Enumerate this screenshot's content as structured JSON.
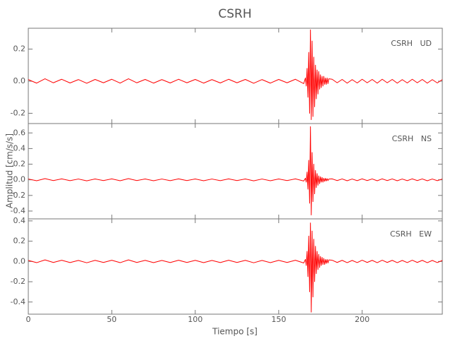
{
  "chart_data": {
    "type": "line",
    "title": "CSRH",
    "xlabel": "Tiempo [s]",
    "ylabel": "Amplitud [cm/s/s]",
    "xlim": [
      0,
      248
    ],
    "xticks": [
      0,
      50,
      100,
      150,
      200
    ],
    "x": [
      0,
      5,
      10,
      15,
      20,
      25,
      30,
      35,
      40,
      45,
      50,
      55,
      60,
      65,
      70,
      75,
      80,
      85,
      90,
      95,
      100,
      105,
      110,
      115,
      120,
      125,
      130,
      135,
      140,
      145,
      150,
      155,
      160,
      165,
      166,
      166.5,
      167,
      167.5,
      168,
      168.5,
      169,
      169.5,
      170,
      170.5,
      171,
      171.5,
      172,
      172.5,
      173,
      173.5,
      174,
      174.5,
      175,
      175.5,
      176,
      176.5,
      177,
      177.5,
      178,
      178.5,
      179,
      179.5,
      180,
      182,
      185,
      188,
      191,
      194,
      197,
      200,
      203,
      206,
      209,
      212,
      215,
      218,
      221,
      224,
      227,
      230,
      233,
      236,
      239,
      242,
      245,
      248
    ],
    "panels": [
      {
        "name": "CSRH   UD",
        "color": "#ff0000",
        "ylim": [
          -0.264,
          0.33
        ],
        "yticks": [
          -0.2,
          {
            "value": 0,
            "label": "0.0"
          },
          0.2
        ],
        "values": [
          0.01,
          -0.012,
          0.015,
          -0.01,
          0.012,
          -0.011,
          0.01,
          -0.013,
          0.011,
          -0.01,
          0.012,
          -0.012,
          0.015,
          -0.01,
          0.011,
          -0.012,
          0.01,
          -0.011,
          0.012,
          -0.01,
          0.011,
          -0.012,
          0.01,
          -0.011,
          0.012,
          -0.01,
          0.011,
          -0.013,
          0.01,
          -0.012,
          0.011,
          -0.01,
          0.012,
          -0.015,
          0.02,
          -0.03,
          0.08,
          -0.1,
          0.18,
          -0.2,
          0.32,
          -0.24,
          0.25,
          -0.22,
          0.15,
          -0.16,
          0.1,
          -0.11,
          0.07,
          -0.08,
          0.06,
          -0.05,
          0.04,
          -0.04,
          0.03,
          -0.03,
          0.03,
          -0.02,
          0.02,
          -0.02,
          0.02,
          -0.015,
          0.015,
          0.012,
          -0.01,
          0.011,
          -0.012,
          0.01,
          -0.011,
          0.012,
          -0.01,
          0.011,
          -0.012,
          0.012,
          -0.01,
          0.011,
          -0.012,
          0.01,
          -0.011,
          0.012,
          -0.01,
          0.011,
          -0.012,
          0.01,
          -0.011,
          0.01
        ]
      },
      {
        "name": "CSRH   NS",
        "color": "#ff0000",
        "ylim": [
          -0.5,
          0.72
        ],
        "yticks": [
          -0.4,
          -0.2,
          {
            "value": 0,
            "label": "0.0"
          },
          0.2,
          0.4,
          0.6
        ],
        "values": [
          0.01,
          -0.012,
          0.015,
          -0.01,
          0.012,
          -0.011,
          0.01,
          -0.013,
          0.011,
          -0.01,
          0.012,
          -0.012,
          0.015,
          -0.01,
          0.011,
          -0.012,
          0.01,
          -0.011,
          0.012,
          -0.01,
          0.011,
          -0.012,
          0.01,
          -0.011,
          0.012,
          -0.01,
          0.011,
          -0.013,
          0.01,
          -0.012,
          0.011,
          -0.01,
          0.012,
          -0.015,
          0.02,
          -0.03,
          0.1,
          -0.12,
          0.25,
          -0.3,
          0.68,
          -0.45,
          0.35,
          -0.28,
          0.2,
          -0.18,
          0.12,
          -0.1,
          0.08,
          -0.07,
          0.05,
          -0.05,
          0.04,
          -0.03,
          0.03,
          -0.03,
          0.02,
          -0.02,
          0.02,
          -0.015,
          0.015,
          -0.01,
          0.01,
          0.012,
          -0.01,
          0.011,
          -0.012,
          0.01,
          -0.011,
          0.012,
          -0.01,
          0.011,
          -0.012,
          0.012,
          -0.01,
          0.011,
          -0.012,
          0.01,
          -0.011,
          0.012,
          -0.01,
          0.011,
          -0.012,
          0.01,
          -0.011,
          0.01
        ]
      },
      {
        "name": "CSRH   EW",
        "color": "#ff0000",
        "ylim": [
          -0.52,
          0.42
        ],
        "yticks": [
          -0.4,
          -0.2,
          {
            "value": 0,
            "label": "0.0"
          },
          0.2,
          0.4
        ],
        "values": [
          0.01,
          -0.012,
          0.015,
          -0.01,
          0.012,
          -0.011,
          0.01,
          -0.013,
          0.011,
          -0.01,
          0.012,
          -0.012,
          0.015,
          -0.01,
          0.011,
          -0.012,
          0.01,
          -0.011,
          0.012,
          -0.01,
          0.011,
          -0.012,
          0.01,
          -0.011,
          0.012,
          -0.01,
          0.011,
          -0.013,
          0.01,
          -0.012,
          0.011,
          -0.01,
          0.012,
          -0.015,
          0.02,
          -0.04,
          0.1,
          -0.15,
          0.25,
          -0.3,
          0.38,
          -0.5,
          0.3,
          -0.35,
          0.22,
          -0.2,
          0.15,
          -0.12,
          0.1,
          -0.08,
          0.07,
          -0.06,
          0.05,
          -0.04,
          0.04,
          -0.03,
          0.03,
          -0.03,
          0.02,
          -0.02,
          0.02,
          -0.015,
          0.015,
          0.012,
          -0.01,
          0.011,
          -0.012,
          0.01,
          -0.011,
          0.012,
          -0.01,
          0.011,
          -0.012,
          0.012,
          -0.01,
          0.011,
          -0.012,
          0.01,
          -0.011,
          0.012,
          -0.01,
          0.011,
          -0.012,
          0.01,
          -0.011,
          0.01
        ]
      }
    ]
  }
}
